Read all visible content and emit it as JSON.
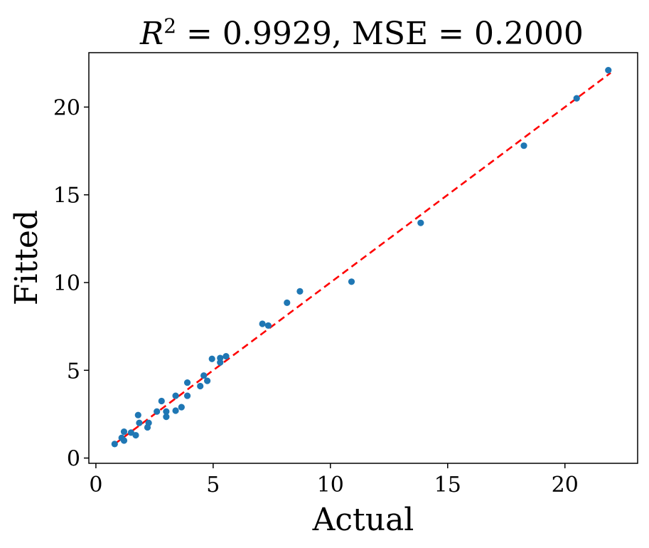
{
  "chart_data": {
    "type": "scatter",
    "title": {
      "r2_symbol": "R",
      "r2_exponent": "2",
      "r2_equals": " = ",
      "r2_value": "0.9929",
      "separator": ", ",
      "mse_label": "MSE = ",
      "mse_value": "0.2000"
    },
    "xlabel": "Actual",
    "ylabel": "Fitted",
    "xlim": [
      -0.3,
      23.1
    ],
    "ylim": [
      -0.3,
      23.1
    ],
    "xticks": [
      0,
      5,
      10,
      15,
      20
    ],
    "yticks": [
      0,
      5,
      10,
      15,
      20
    ],
    "grid": false,
    "series": [
      {
        "name": "data",
        "color": "#1f77b4",
        "points": [
          [
            0.8,
            0.8
          ],
          [
            1.1,
            1.15
          ],
          [
            1.2,
            1.0
          ],
          [
            1.2,
            1.5
          ],
          [
            1.5,
            1.45
          ],
          [
            1.7,
            1.3
          ],
          [
            1.8,
            2.45
          ],
          [
            1.85,
            2.0
          ],
          [
            2.2,
            1.75
          ],
          [
            2.25,
            2.0
          ],
          [
            2.6,
            2.65
          ],
          [
            2.8,
            3.25
          ],
          [
            3.0,
            2.65
          ],
          [
            3.0,
            2.35
          ],
          [
            3.4,
            3.55
          ],
          [
            3.4,
            2.7
          ],
          [
            3.65,
            2.9
          ],
          [
            3.9,
            3.55
          ],
          [
            3.9,
            4.3
          ],
          [
            4.45,
            4.1
          ],
          [
            4.6,
            4.7
          ],
          [
            4.75,
            4.4
          ],
          [
            4.95,
            5.65
          ],
          [
            5.3,
            5.7
          ],
          [
            5.3,
            5.45
          ],
          [
            5.55,
            5.8
          ],
          [
            7.1,
            7.65
          ],
          [
            7.35,
            7.55
          ],
          [
            8.15,
            8.85
          ],
          [
            8.7,
            9.5
          ],
          [
            10.9,
            10.05
          ],
          [
            13.85,
            13.4
          ],
          [
            18.25,
            17.8
          ],
          [
            20.5,
            20.5
          ],
          [
            21.85,
            22.1
          ]
        ]
      }
    ],
    "fit_line": {
      "name": "identity",
      "color": "#ff0000",
      "style": "dashed",
      "x": [
        0.8,
        21.95
      ],
      "y": [
        0.8,
        21.95
      ]
    }
  }
}
